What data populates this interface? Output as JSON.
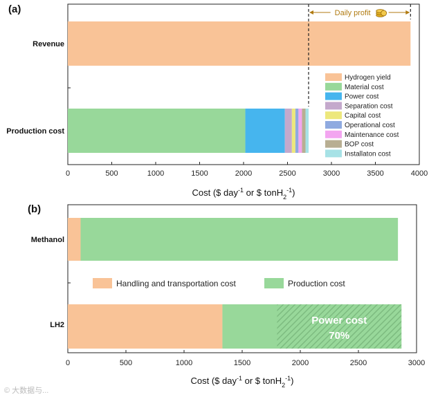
{
  "watermark": "© 大数据与...",
  "chart_data": [
    {
      "panel": "(a)",
      "type": "bar",
      "orientation": "horizontal",
      "stacked": true,
      "categories": [
        "Revenue",
        "Production cost"
      ],
      "series": [
        {
          "name": "Hydrogen yield",
          "color": "#f9c397",
          "values": [
            3900,
            0
          ]
        },
        {
          "name": "Material cost",
          "color": "#98d89a",
          "values": [
            0,
            2020
          ]
        },
        {
          "name": "Power cost",
          "color": "#46b5ee",
          "values": [
            0,
            450
          ]
        },
        {
          "name": "Separation cost",
          "color": "#c4a9cc",
          "values": [
            0,
            80
          ]
        },
        {
          "name": "Capital cost",
          "color": "#ede87c",
          "values": [
            0,
            40
          ]
        },
        {
          "name": "Operational cost",
          "color": "#8faae0",
          "values": [
            0,
            35
          ]
        },
        {
          "name": "Maintenance cost",
          "color": "#f3a5f0",
          "values": [
            0,
            40
          ]
        },
        {
          "name": "BOP cost",
          "color": "#b8ae92",
          "values": [
            0,
            40
          ]
        },
        {
          "name": "Installaton cost",
          "color": "#a7e2e6",
          "values": [
            0,
            35
          ]
        }
      ],
      "annotation": {
        "text": "Daily profit",
        "from": 2740,
        "to": 3900
      },
      "xlim": [
        0,
        4000
      ],
      "xticks": [
        0,
        500,
        1000,
        1500,
        2000,
        2500,
        3000,
        3500,
        4000
      ],
      "xlabel": "Cost ($ day",
      "xlabel_sup1": "-1",
      "xlabel_mid": " or $ tonH",
      "xlabel_sub": "2",
      "xlabel_sup2": "-1",
      "xlabel_end": ")",
      "legend_position": "right"
    },
    {
      "panel": "(b)",
      "type": "bar",
      "orientation": "horizontal",
      "stacked": true,
      "categories": [
        "Methanol",
        "LH2"
      ],
      "series": [
        {
          "name": "Handling and transportation cost",
          "color": "#f9c397",
          "values": [
            110,
            1330
          ]
        },
        {
          "name": "Production cost",
          "color": "#98d89a",
          "values": [
            2730,
            1540
          ]
        }
      ],
      "highlight": {
        "label": "Power cost",
        "percent": "70%",
        "category": "LH2",
        "from": 1800,
        "to": 2870
      },
      "xlim": [
        0,
        3000
      ],
      "xticks": [
        0,
        500,
        1000,
        1500,
        2000,
        2500,
        3000
      ],
      "xlabel": "Cost ($ day",
      "xlabel_sup1": "-1",
      "xlabel_mid": " or $ tonH",
      "xlabel_sub": "2",
      "xlabel_sup2": "-1",
      "xlabel_end": ")",
      "legend_position": "center"
    }
  ]
}
